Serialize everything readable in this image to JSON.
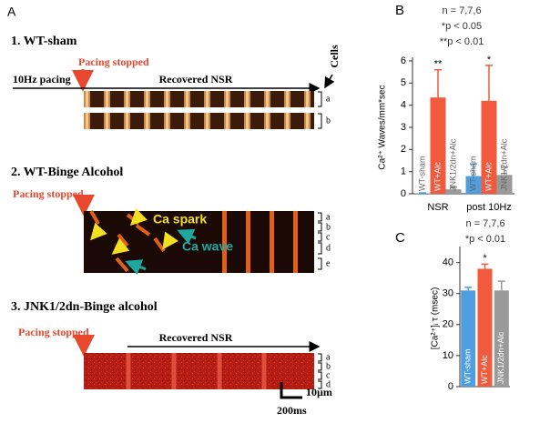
{
  "panel_a": {
    "label": "A",
    "panels": [
      {
        "title": "1. WT-sham",
        "pacing": "Pacing stopped",
        "pacing_rate": "10Hz pacing",
        "recovery": "Recovered NSR",
        "cells": "Cells",
        "lanes": [
          "a",
          "b"
        ]
      },
      {
        "title": "2. WT-Binge Alcohol",
        "pacing": "Pacing stopped",
        "spark": "Ca spark",
        "wave": "Ca wave",
        "lanes": [
          "a",
          "b",
          "c",
          "d",
          "e"
        ]
      },
      {
        "title": "3. JNK1/2dn-Binge alcohol",
        "pacing": "Pacing stopped",
        "recovery": "Recovered NSR",
        "lanes": [
          "a",
          "b",
          "c",
          "d"
        ],
        "scale_y": "10µm",
        "scale_x": "200ms"
      }
    ]
  },
  "chart_data": [
    {
      "type": "bar",
      "panel": "B",
      "annotations": [
        "n = 7,7,6",
        "*p < 0.05",
        "**p < 0.01"
      ],
      "y_label": "Ca²⁺ Waves/mm*sec",
      "categories": [
        "NSR",
        "post 10Hz"
      ],
      "series": [
        {
          "name": "WT-sham",
          "color": "#4f9ee0",
          "values": [
            0.02,
            0.8
          ],
          "errors": [
            0.02,
            0.55
          ]
        },
        {
          "name": "WT+Alc",
          "color": "#f15a3c",
          "values": [
            4.35,
            4.2
          ],
          "errors": [
            1.25,
            1.6
          ],
          "significance": [
            "**",
            "*"
          ]
        },
        {
          "name": "JNK1/2dn+Alc",
          "color": "#9a9a9a",
          "values": [
            0.2,
            0.85
          ],
          "errors": [
            0.1,
            0.35
          ]
        }
      ],
      "ylim": [
        0,
        6
      ],
      "yticks": [
        0,
        1,
        2,
        3,
        4,
        5,
        6
      ]
    },
    {
      "type": "bar",
      "panel": "C",
      "annotations": [
        "n = 7,7,6",
        "*p < 0.01"
      ],
      "y_label": "[Ca²⁺]ᵢ τ (msec)",
      "categories": [
        "WT-sham",
        "WT+Alc",
        "JNK1/2dn+Alc"
      ],
      "values": [
        31,
        38,
        31
      ],
      "errors": [
        1,
        1.5,
        3
      ],
      "significance": [
        null,
        "*",
        null
      ],
      "colors": [
        "#4f9ee0",
        "#f15a3c",
        "#9a9a9a"
      ],
      "ylim": [
        0,
        44
      ],
      "yticks": [
        0,
        10,
        20,
        30,
        40
      ]
    }
  ]
}
